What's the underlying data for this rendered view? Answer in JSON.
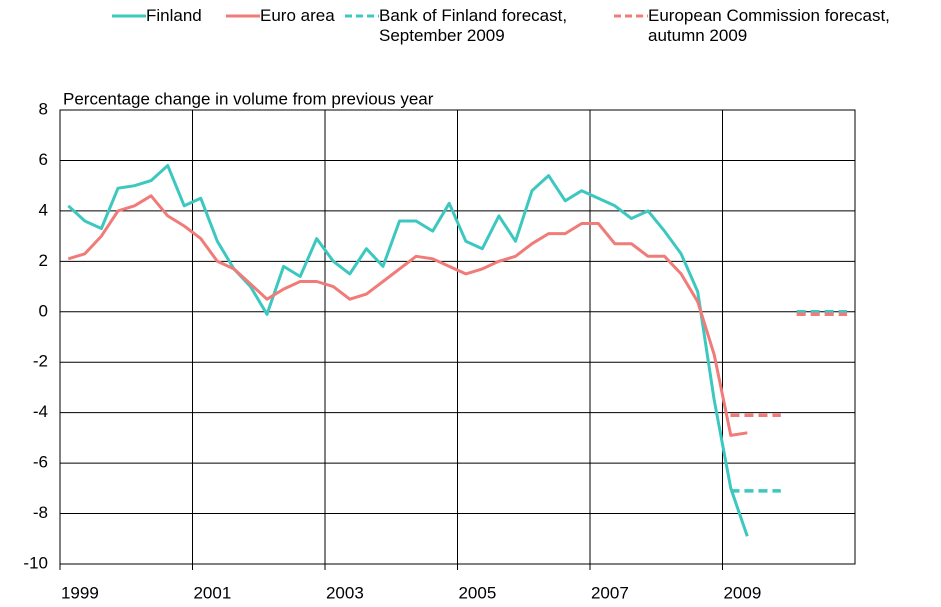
{
  "chart_data": {
    "type": "line",
    "ylabel": "Percentage change in volume from previous year",
    "x": [
      1999.125,
      1999.375,
      1999.625,
      1999.875,
      2000.125,
      2000.375,
      2000.625,
      2000.875,
      2001.125,
      2001.375,
      2001.625,
      2001.875,
      2002.125,
      2002.375,
      2002.625,
      2002.875,
      2003.125,
      2003.375,
      2003.625,
      2003.875,
      2004.125,
      2004.375,
      2004.625,
      2004.875,
      2005.125,
      2005.375,
      2005.625,
      2005.875,
      2006.125,
      2006.375,
      2006.625,
      2006.875,
      2007.125,
      2007.375,
      2007.625,
      2007.875,
      2008.125,
      2008.375,
      2008.625,
      2008.875,
      2009.125,
      2009.375
    ],
    "series": [
      {
        "name": "Finland",
        "color": "#3cc8c0",
        "values": [
          4.2,
          3.6,
          3.3,
          4.9,
          5.0,
          5.2,
          5.8,
          4.2,
          4.5,
          2.8,
          1.7,
          1.0,
          -0.1,
          1.8,
          1.4,
          2.9,
          2.0,
          1.5,
          2.5,
          1.8,
          3.6,
          3.6,
          3.2,
          4.3,
          2.8,
          2.5,
          3.8,
          2.8,
          4.8,
          5.4,
          4.4,
          4.8,
          4.5,
          4.2,
          3.7,
          4.0,
          3.2,
          2.3,
          0.8,
          -3.5,
          -7.0,
          -8.9
        ]
      },
      {
        "name": "Euro area",
        "color": "#f07b78",
        "values": [
          2.1,
          2.3,
          3.0,
          4.0,
          4.2,
          4.6,
          3.8,
          3.4,
          2.9,
          2.0,
          1.7,
          1.1,
          0.5,
          0.9,
          1.2,
          1.2,
          1.0,
          0.5,
          0.7,
          1.2,
          1.7,
          2.2,
          2.1,
          1.8,
          1.5,
          1.7,
          2.0,
          2.2,
          2.7,
          3.1,
          3.1,
          3.5,
          3.5,
          2.7,
          2.7,
          2.2,
          2.2,
          1.5,
          0.4,
          -1.7,
          -4.9,
          -4.8
        ]
      },
      {
        "name": "Bank of Finland forecast, September 2009",
        "color": "#3cc8c0",
        "dashed": true,
        "x": [
          2009.5,
          2010.5
        ],
        "values": [
          -7.1,
          0.0
        ]
      },
      {
        "name": "European Commission forecast, autumn 2009",
        "color": "#f07b78",
        "dashed": true,
        "x": [
          2009.5,
          2010.5
        ],
        "values": [
          -4.1,
          -0.1
        ]
      }
    ],
    "xlim": [
      1999,
      2011
    ],
    "xticks": [
      1999,
      2001,
      2003,
      2005,
      2007,
      2009
    ],
    "ylim": [
      -10,
      8
    ],
    "yticks": [
      -10,
      -8,
      -6,
      -4,
      -2,
      0,
      2,
      4,
      6,
      8
    ],
    "grid": true
  }
}
